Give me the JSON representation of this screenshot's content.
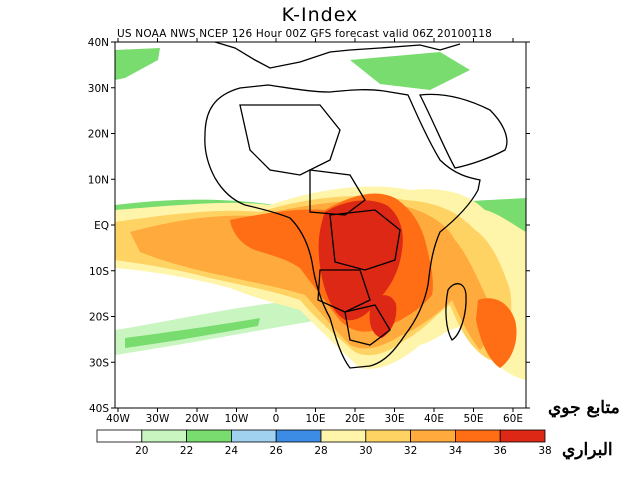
{
  "title": "K-Index",
  "subtitle": "US NOAA NWS NCEP 126 Hour 00Z GFS forecast valid 06Z 20100118",
  "map": {
    "lat_labels": [
      "40N",
      "30N",
      "20N",
      "10N",
      "EQ",
      "10S",
      "20S",
      "30S",
      "40S"
    ],
    "lon_labels": [
      "40W",
      "30W",
      "20W",
      "10W",
      "0",
      "10E",
      "20E",
      "30E",
      "40E",
      "50E",
      "60E"
    ]
  },
  "colorbar": {
    "labels": [
      "20",
      "22",
      "24",
      "26",
      "28",
      "30",
      "32",
      "34",
      "36",
      "38"
    ],
    "colors": [
      "#ffffff",
      "#c8f5c0",
      "#78dc6e",
      "#a0d2f0",
      "#3c8ce6",
      "#fff5aa",
      "#ffd264",
      "#ffaa3c",
      "#ff6e14",
      "#dc2814"
    ]
  },
  "watermark": {
    "line1": "متابع جوي",
    "line2": "البراري"
  }
}
